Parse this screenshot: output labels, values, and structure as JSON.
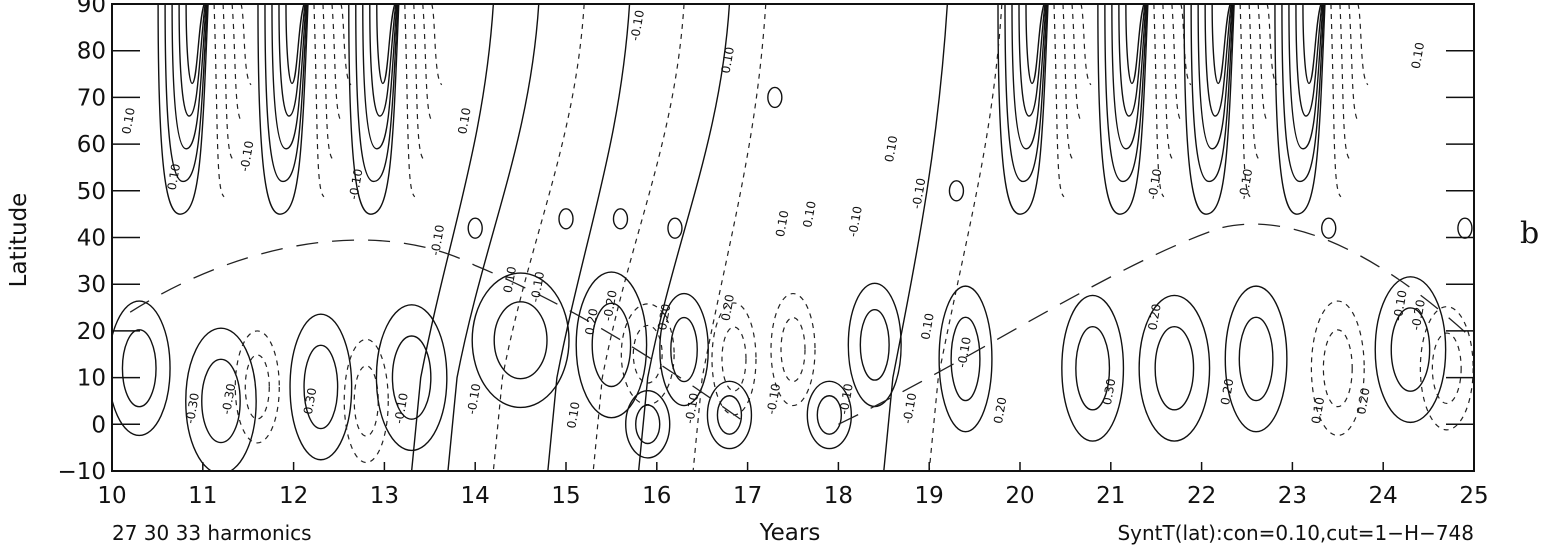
{
  "chart_data": {
    "type": "contour",
    "xlabel": "Years",
    "ylabel": "Latitude",
    "xlim": [
      10,
      25
    ],
    "ylim": [
      -10,
      90
    ],
    "xticks": [
      "10",
      "11",
      "12",
      "13",
      "14",
      "15",
      "16",
      "17",
      "18",
      "19",
      "20",
      "21",
      "22",
      "23",
      "24",
      "25"
    ],
    "yticks": [
      "90",
      "80",
      "70",
      "60",
      "50",
      "40",
      "30",
      "20",
      "10",
      "0",
      "−10"
    ],
    "bottom_left_text": "27 30 33 harmonics",
    "bottom_right_text": "SyntT(lat):con=0.10,cut=1−H−748",
    "panel_label": "b",
    "contour_interval": 0.1,
    "contour_labels": [
      "0.10",
      "-0.10",
      "0.20",
      "-0.20",
      "0.30",
      "-0.30"
    ],
    "line_styles": {
      "positive": "solid",
      "negative": "dashed",
      "butterfly_boundary": "long-dash"
    }
  }
}
